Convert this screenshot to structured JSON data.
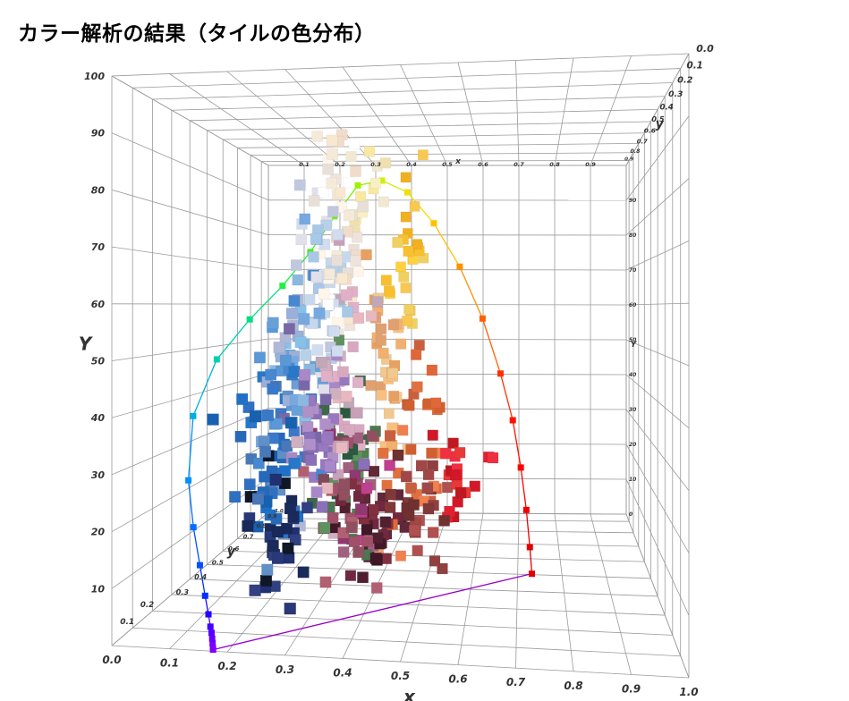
{
  "title": "カラー解析の結果（タイルの色分布）",
  "chart_data": {
    "type": "scatter",
    "subtype": "3d-cie-xyY",
    "xlabel": "x",
    "ylabel": "y",
    "zlabel": "Y",
    "xlim": [
      0.0,
      1.0
    ],
    "ylim": [
      0.0,
      1.0
    ],
    "zlim": [
      0,
      100
    ],
    "x_ticks": [
      "0.0",
      "0.1",
      "0.2",
      "0.3",
      "0.4",
      "0.5",
      "0.6",
      "0.7",
      "0.8",
      "0.9",
      "1.0"
    ],
    "y_ticks_left": [
      "0.1",
      "0.2",
      "0.3",
      "0.4",
      "0.5",
      "0.6",
      "0.7",
      "0.8",
      "0.9",
      "1.0"
    ],
    "y_ticks_top": [
      "0.0",
      "0.1",
      "0.2",
      "0.3",
      "0.4",
      "0.5",
      "0.6",
      "0.7",
      "0.8",
      "0.9"
    ],
    "z_ticks": [
      "10",
      "20",
      "30",
      "40",
      "50",
      "60",
      "70",
      "80",
      "90",
      "100"
    ],
    "z_ticks_right": [
      "0",
      "10",
      "20",
      "30",
      "40",
      "50",
      "60",
      "70",
      "80",
      "90"
    ],
    "top_x_ticks": [
      "0.0",
      "0.1",
      "0.2",
      "0.3",
      "0.4",
      "0.5",
      "0.6",
      "0.7",
      "0.8",
      "0.9",
      "1.0"
    ],
    "grid": true,
    "spectral_locus": [
      {
        "x": 0.1741,
        "y": 0.005,
        "Y": 0.1,
        "color": "#8000ff"
      },
      {
        "x": 0.1738,
        "y": 0.0049,
        "Y": 0.4,
        "color": "#7f00ff"
      },
      {
        "x": 0.1733,
        "y": 0.0048,
        "Y": 1.2,
        "color": "#7a00ff"
      },
      {
        "x": 0.1726,
        "y": 0.0048,
        "Y": 2.0,
        "color": "#6800ff"
      },
      {
        "x": 0.1714,
        "y": 0.0051,
        "Y": 3.0,
        "color": "#5800ff"
      },
      {
        "x": 0.1689,
        "y": 0.0069,
        "Y": 4.0,
        "color": "#4000ff"
      },
      {
        "x": 0.1644,
        "y": 0.0109,
        "Y": 6.0,
        "color": "#2000ff"
      },
      {
        "x": 0.1566,
        "y": 0.0177,
        "Y": 9.0,
        "color": "#0030ff"
      },
      {
        "x": 0.144,
        "y": 0.0297,
        "Y": 14.0,
        "color": "#0050ff"
      },
      {
        "x": 0.1241,
        "y": 0.0578,
        "Y": 20.0,
        "color": "#0070ff"
      },
      {
        "x": 0.0913,
        "y": 0.1327,
        "Y": 27.0,
        "color": "#0090ff"
      },
      {
        "x": 0.0454,
        "y": 0.295,
        "Y": 37.0,
        "color": "#00b0e0"
      },
      {
        "x": 0.0082,
        "y": 0.5384,
        "Y": 47.0,
        "color": "#00d0b0"
      },
      {
        "x": 0.0139,
        "y": 0.7502,
        "Y": 56.0,
        "color": "#00e080"
      },
      {
        "x": 0.0743,
        "y": 0.8338,
        "Y": 65.0,
        "color": "#20f040"
      },
      {
        "x": 0.1547,
        "y": 0.8059,
        "Y": 74.0,
        "color": "#40f020"
      },
      {
        "x": 0.2296,
        "y": 0.7543,
        "Y": 83.0,
        "color": "#70f000"
      },
      {
        "x": 0.3016,
        "y": 0.6923,
        "Y": 90.0,
        "color": "#a0f000"
      },
      {
        "x": 0.3731,
        "y": 0.6245,
        "Y": 90.0,
        "color": "#d0f000"
      },
      {
        "x": 0.4441,
        "y": 0.5547,
        "Y": 86.0,
        "color": "#f0e000"
      },
      {
        "x": 0.5125,
        "y": 0.4866,
        "Y": 78.0,
        "color": "#ffc000"
      },
      {
        "x": 0.5752,
        "y": 0.4242,
        "Y": 68.0,
        "color": "#ff9000"
      },
      {
        "x": 0.627,
        "y": 0.3725,
        "Y": 57.0,
        "color": "#ff6000"
      },
      {
        "x": 0.6658,
        "y": 0.334,
        "Y": 46.0,
        "color": "#ff3000"
      },
      {
        "x": 0.6915,
        "y": 0.3083,
        "Y": 37.0,
        "color": "#ff1000"
      },
      {
        "x": 0.7079,
        "y": 0.292,
        "Y": 28.0,
        "color": "#ff0000"
      },
      {
        "x": 0.719,
        "y": 0.2809,
        "Y": 20.0,
        "color": "#f00000"
      },
      {
        "x": 0.726,
        "y": 0.274,
        "Y": 13.0,
        "color": "#e00000"
      },
      {
        "x": 0.73,
        "y": 0.27,
        "Y": 8.0,
        "color": "#e00000"
      }
    ],
    "purple_line": {
      "from": [
        0.1741,
        0.005,
        0.1
      ],
      "to": [
        0.73,
        0.27,
        8.0
      ],
      "color": "#9900cc"
    },
    "clusters": [
      {
        "cx": 0.33,
        "cy": 0.34,
        "cY": 75,
        "sx": 0.025,
        "sy": 0.025,
        "sY": 12,
        "n": 48,
        "colors": [
          "#f5ead8",
          "#f0dcc8",
          "#fff5e8",
          "#e8e0d8",
          "#f8e8d0",
          "#ffffff",
          "#eee4dc"
        ]
      },
      {
        "cx": 0.3,
        "cy": 0.31,
        "cY": 62,
        "sx": 0.03,
        "sy": 0.03,
        "sY": 10,
        "n": 45,
        "colors": [
          "#c8d8ec",
          "#b8d0e8",
          "#d0dcef",
          "#a8c8e8",
          "#e0e0ea",
          "#c0c8e0"
        ]
      },
      {
        "cx": 0.26,
        "cy": 0.28,
        "cY": 50,
        "sx": 0.03,
        "sy": 0.03,
        "sY": 10,
        "n": 40,
        "colors": [
          "#8ab8e0",
          "#78a8e0",
          "#9ab0d8",
          "#6aa0d8",
          "#88c0e8",
          "#b0b8d8"
        ]
      },
      {
        "cx": 0.24,
        "cy": 0.26,
        "cY": 38,
        "sx": 0.03,
        "sy": 0.03,
        "sY": 10,
        "n": 35,
        "colors": [
          "#4888d0",
          "#3a78c8",
          "#5a98d8",
          "#2878c8",
          "#6090c8"
        ]
      },
      {
        "cx": 0.22,
        "cy": 0.24,
        "cY": 26,
        "sx": 0.03,
        "sy": 0.03,
        "sY": 8,
        "n": 32,
        "colors": [
          "#2868b8",
          "#3070c0",
          "#1860b0",
          "#4878b8",
          "#2070c8"
        ]
      },
      {
        "cx": 0.23,
        "cy": 0.22,
        "cY": 14,
        "sx": 0.03,
        "sy": 0.03,
        "sY": 7,
        "n": 30,
        "colors": [
          "#203070",
          "#283878",
          "#182858",
          "#304080",
          "#1a2a5a",
          "#101828"
        ]
      },
      {
        "cx": 0.3,
        "cy": 0.26,
        "cY": 34,
        "sx": 0.03,
        "sy": 0.03,
        "sY": 10,
        "n": 38,
        "colors": [
          "#8a70b8",
          "#9878c0",
          "#a888c8",
          "#7868a8",
          "#b090c8"
        ]
      },
      {
        "cx": 0.34,
        "cy": 0.3,
        "cY": 44,
        "sx": 0.03,
        "sy": 0.03,
        "sY": 12,
        "n": 40,
        "colors": [
          "#d8a8c0",
          "#e0b0c8",
          "#c8a0b8",
          "#e8b8c0",
          "#d0b0c0",
          "#c0a8b8"
        ]
      },
      {
        "cx": 0.36,
        "cy": 0.3,
        "cY": 22,
        "sx": 0.035,
        "sy": 0.03,
        "sY": 8,
        "n": 38,
        "colors": [
          "#a05068",
          "#905060",
          "#b06070",
          "#804858",
          "#a06080",
          "#c04090",
          "#903870"
        ]
      },
      {
        "cx": 0.34,
        "cy": 0.36,
        "cY": 24,
        "sx": 0.03,
        "sy": 0.03,
        "sY": 9,
        "n": 25,
        "colors": [
          "#508050",
          "#406848",
          "#609060",
          "#4a7850",
          "#2a5a40"
        ]
      },
      {
        "cx": 0.4,
        "cy": 0.32,
        "cY": 14,
        "sx": 0.035,
        "sy": 0.03,
        "sY": 5,
        "n": 35,
        "colors": [
          "#602838",
          "#502030",
          "#702840",
          "#401828",
          "#803040"
        ]
      },
      {
        "cx": 0.43,
        "cy": 0.39,
        "cY": 48,
        "sx": 0.03,
        "sy": 0.03,
        "sY": 14,
        "n": 35,
        "colors": [
          "#f0b070",
          "#e8a060",
          "#f8c080",
          "#e0a070",
          "#f0c890"
        ]
      },
      {
        "cx": 0.45,
        "cy": 0.45,
        "cY": 70,
        "sx": 0.025,
        "sy": 0.03,
        "sY": 12,
        "n": 25,
        "colors": [
          "#f8c030",
          "#f0b020",
          "#ffd040",
          "#f8c850",
          "#f0d060"
        ]
      },
      {
        "cx": 0.49,
        "cy": 0.38,
        "cY": 30,
        "sx": 0.035,
        "sy": 0.03,
        "sY": 9,
        "n": 30,
        "colors": [
          "#e07040",
          "#d06030",
          "#f08050",
          "#e06838",
          "#c86040"
        ]
      },
      {
        "cx": 0.58,
        "cy": 0.33,
        "cY": 22,
        "sx": 0.03,
        "sy": 0.025,
        "sY": 6,
        "n": 20,
        "colors": [
          "#e02030",
          "#d01828",
          "#f03040",
          "#c01820",
          "#e83838"
        ]
      },
      {
        "cx": 0.5,
        "cy": 0.31,
        "cY": 17,
        "sx": 0.03,
        "sy": 0.03,
        "sY": 6,
        "n": 25,
        "colors": [
          "#904040",
          "#a04848",
          "#803838",
          "#b05050",
          "#703030"
        ]
      },
      {
        "cx": 0.38,
        "cy": 0.41,
        "cY": 85,
        "sx": 0.02,
        "sy": 0.02,
        "sY": 6,
        "n": 12,
        "colors": [
          "#f8e8a0",
          "#f0e0b0",
          "#f8f0c0",
          "#f0e8d0"
        ]
      }
    ]
  }
}
